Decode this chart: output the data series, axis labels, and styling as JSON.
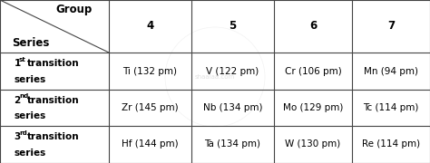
{
  "col_headers": [
    "4",
    "5",
    "6",
    "7"
  ],
  "cells": [
    [
      "Ti (132 pm)",
      "V (122 pm)",
      "Cr (106 pm)",
      "Mn (94 pm)"
    ],
    [
      "Zr (145 pm)",
      "Nb (134 pm)",
      "Mo (129 pm)",
      "Tc (114 pm)"
    ],
    [
      "Hf (144 pm)",
      "Ta (134 pm)",
      "W (130 pm)",
      "Re (114 pm)"
    ]
  ],
  "row_labels_line1": [
    "1",
    "2",
    "3"
  ],
  "row_labels_sup": [
    "st",
    "nd",
    "rd"
  ],
  "row_labels_line2": [
    "  transition",
    "  transition",
    "  transition"
  ],
  "row_labels_line3": [
    "series",
    "series",
    "series"
  ],
  "corner_top": "Group",
  "corner_bottom": "Series",
  "bg_color": "#ffffff",
  "border_color": "#444444",
  "text_color": "#000000",
  "cell_font_size": 7.5,
  "header_font_size": 8.5,
  "bold_font": "bold"
}
